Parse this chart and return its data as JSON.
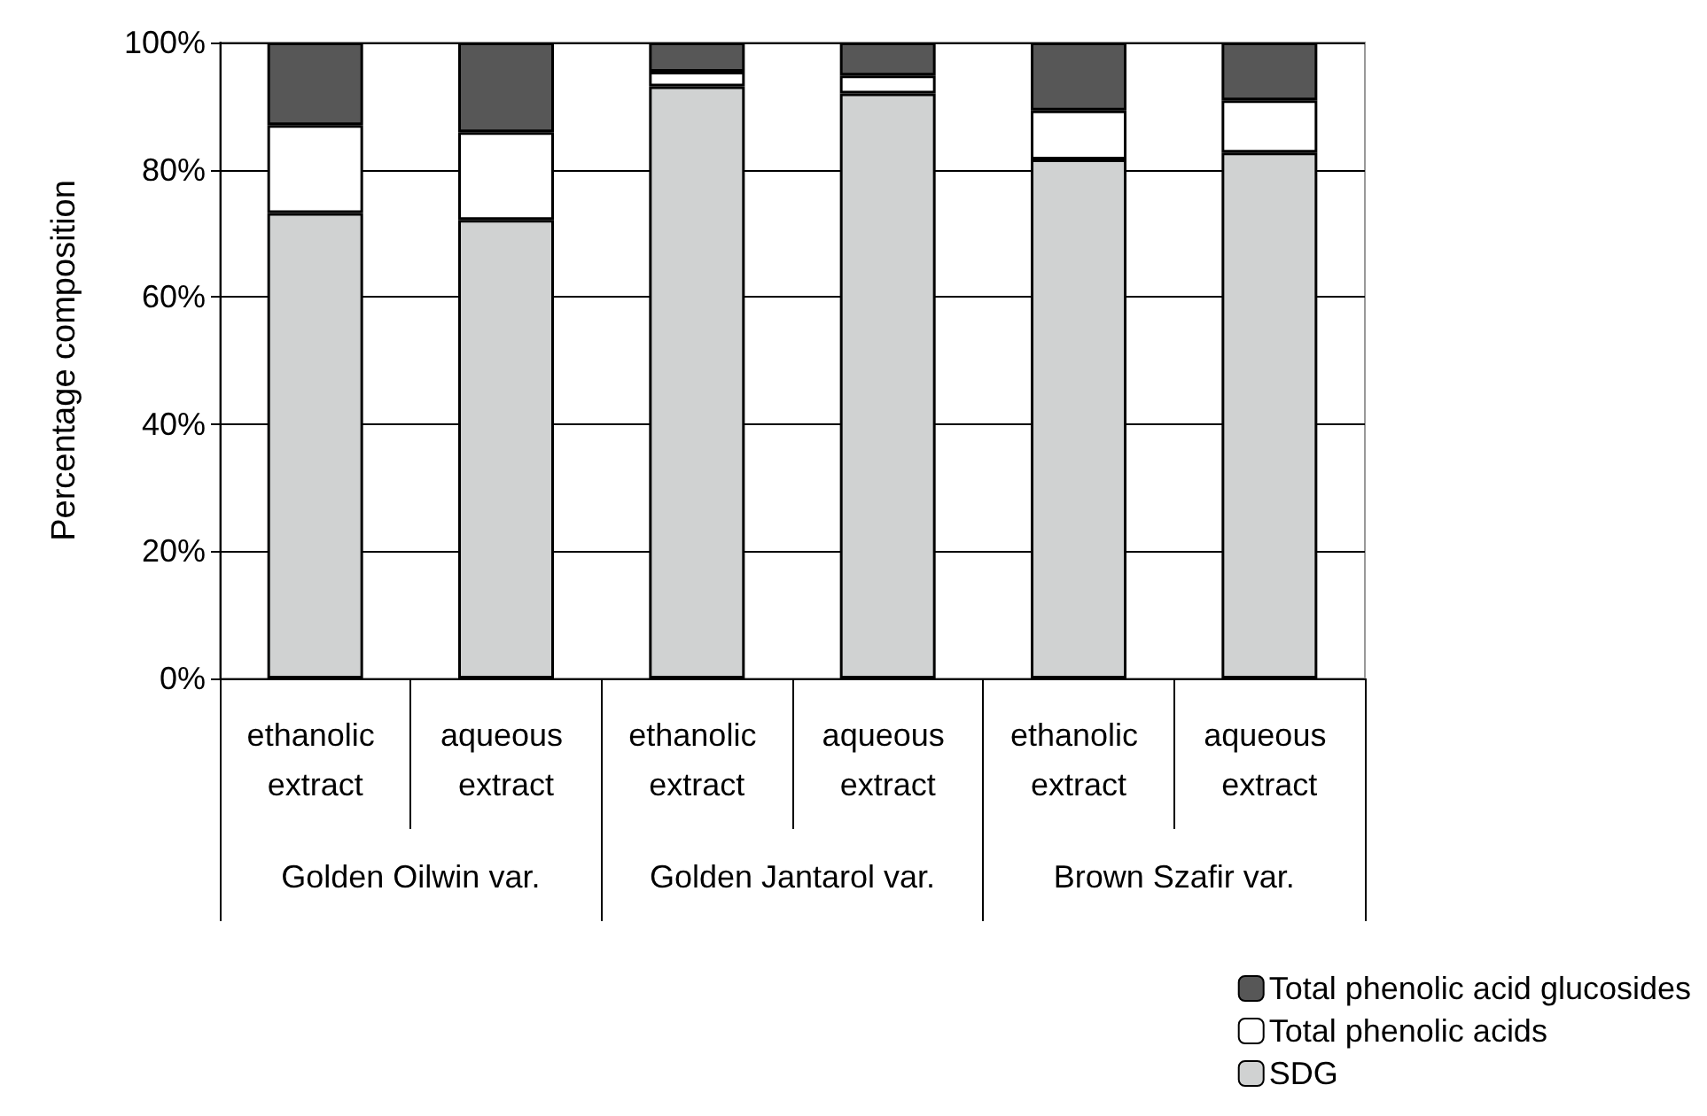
{
  "chart_data": {
    "type": "bar",
    "stacked": true,
    "ylabel": "Percentage composition",
    "categories": [
      "ethanolic extract",
      "aqueous extract",
      "ethanolic extract",
      "aqueous extract",
      "ethanolic extract",
      "aqueous extract"
    ],
    "annotations": [
      "Golden Oilwin var.",
      "Golden Jantarol var.",
      "Brown Szafir var."
    ],
    "series": [
      {
        "name": "SDG",
        "color": "#d0d2d2",
        "values": [
          73.2,
          72.1,
          93.1,
          92.0,
          81.6,
          82.7
        ]
      },
      {
        "name": "Total phenolic acids",
        "color": "#ffffff",
        "values": [
          13.8,
          13.8,
          2.3,
          2.8,
          7.7,
          8.2
        ]
      },
      {
        "name": "Total phenolic acid glucosides",
        "color": "#575757",
        "values": [
          13.0,
          14.1,
          4.6,
          5.2,
          10.7,
          9.1
        ]
      }
    ],
    "ylim": [
      0,
      100
    ],
    "yticks": [
      {
        "value": 0,
        "label": "0%"
      },
      {
        "value": 20,
        "label": "20%"
      },
      {
        "value": 40,
        "label": "40%"
      },
      {
        "value": 60,
        "label": "60%"
      },
      {
        "value": 80,
        "label": "80%"
      },
      {
        "value": 100,
        "label": "100%"
      }
    ],
    "grid": "y",
    "legend": "bottom right"
  }
}
